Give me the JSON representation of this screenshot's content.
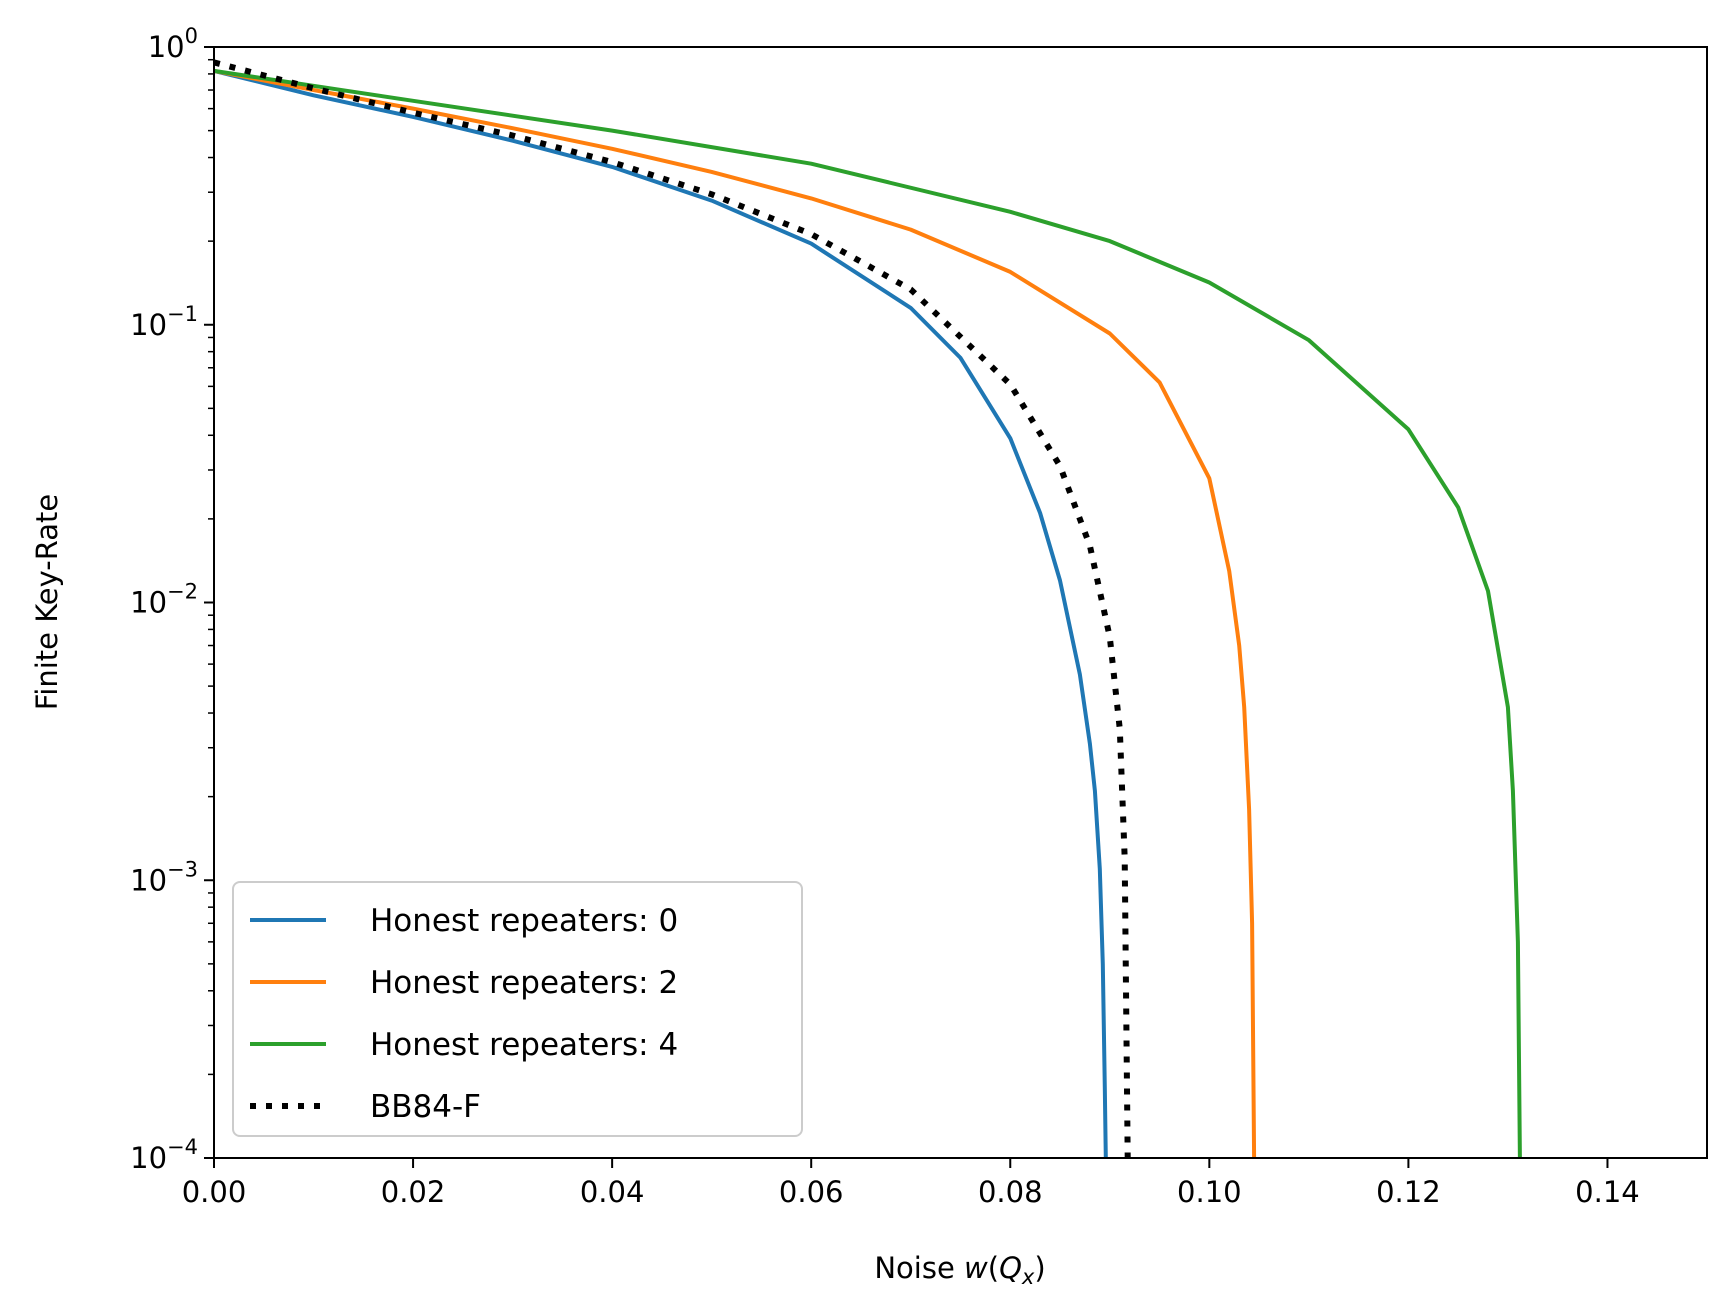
{
  "chart_data": {
    "type": "line",
    "title": "",
    "xlabel_prefix": "Noise ",
    "xlabel_func": "w",
    "xlabel_open": "(",
    "xlabel_var": "Q",
    "xlabel_sub": "x",
    "xlabel_close": ")",
    "ylabel": "Finite Key-Rate",
    "xlim": [
      0,
      0.15
    ],
    "ylim": [
      0.0001,
      1
    ],
    "yscale": "log",
    "grid": false,
    "legend_position": "lower-left",
    "x_ticks": [
      "0.00",
      "0.02",
      "0.04",
      "0.06",
      "0.08",
      "0.10",
      "0.12",
      "0.14"
    ],
    "y_ticks": [
      {
        "base": "10",
        "exp": "0"
      },
      {
        "base": "10",
        "exp": "−1"
      },
      {
        "base": "10",
        "exp": "−2"
      },
      {
        "base": "10",
        "exp": "−3"
      },
      {
        "base": "10",
        "exp": "−4"
      }
    ],
    "series": [
      {
        "name": "Honest repeaters: 0",
        "color": "#1f77b4",
        "style": "solid",
        "x": [
          0,
          0.01,
          0.02,
          0.03,
          0.04,
          0.05,
          0.06,
          0.07,
          0.075,
          0.08,
          0.083,
          0.085,
          0.087,
          0.088,
          0.0885,
          0.089,
          0.0893,
          0.0895,
          0.0896
        ],
        "y": [
          0.82,
          0.67,
          0.56,
          0.46,
          0.37,
          0.28,
          0.196,
          0.115,
          0.076,
          0.039,
          0.021,
          0.012,
          0.0055,
          0.0031,
          0.0021,
          0.0011,
          0.0005,
          0.00018,
          0.0001
        ]
      },
      {
        "name": "Honest repeaters: 2",
        "color": "#ff7f0e",
        "style": "solid",
        "x": [
          0,
          0.01,
          0.02,
          0.03,
          0.04,
          0.05,
          0.06,
          0.07,
          0.08,
          0.09,
          0.095,
          0.1,
          0.102,
          0.103,
          0.1035,
          0.104,
          0.1043,
          0.1045
        ],
        "y": [
          0.82,
          0.7,
          0.6,
          0.51,
          0.43,
          0.355,
          0.285,
          0.22,
          0.155,
          0.093,
          0.062,
          0.028,
          0.013,
          0.007,
          0.0042,
          0.0018,
          0.0007,
          0.0001
        ]
      },
      {
        "name": "Honest repeaters: 4",
        "color": "#2ca02c",
        "style": "solid",
        "x": [
          0,
          0.02,
          0.04,
          0.06,
          0.08,
          0.09,
          0.1,
          0.11,
          0.12,
          0.125,
          0.128,
          0.13,
          0.1305,
          0.131,
          0.1312
        ],
        "y": [
          0.82,
          0.64,
          0.5,
          0.38,
          0.255,
          0.2,
          0.142,
          0.088,
          0.042,
          0.022,
          0.011,
          0.0042,
          0.0021,
          0.0006,
          0.0001
        ]
      },
      {
        "name": "BB84-F",
        "color": "#000000",
        "style": "dotted",
        "x": [
          0,
          0.01,
          0.02,
          0.03,
          0.04,
          0.05,
          0.06,
          0.07,
          0.08,
          0.085,
          0.088,
          0.09,
          0.091,
          0.0915,
          0.0918
        ],
        "y": [
          0.88,
          0.71,
          0.58,
          0.48,
          0.385,
          0.295,
          0.212,
          0.134,
          0.061,
          0.031,
          0.016,
          0.0075,
          0.0035,
          0.0012,
          0.0001
        ]
      }
    ]
  }
}
